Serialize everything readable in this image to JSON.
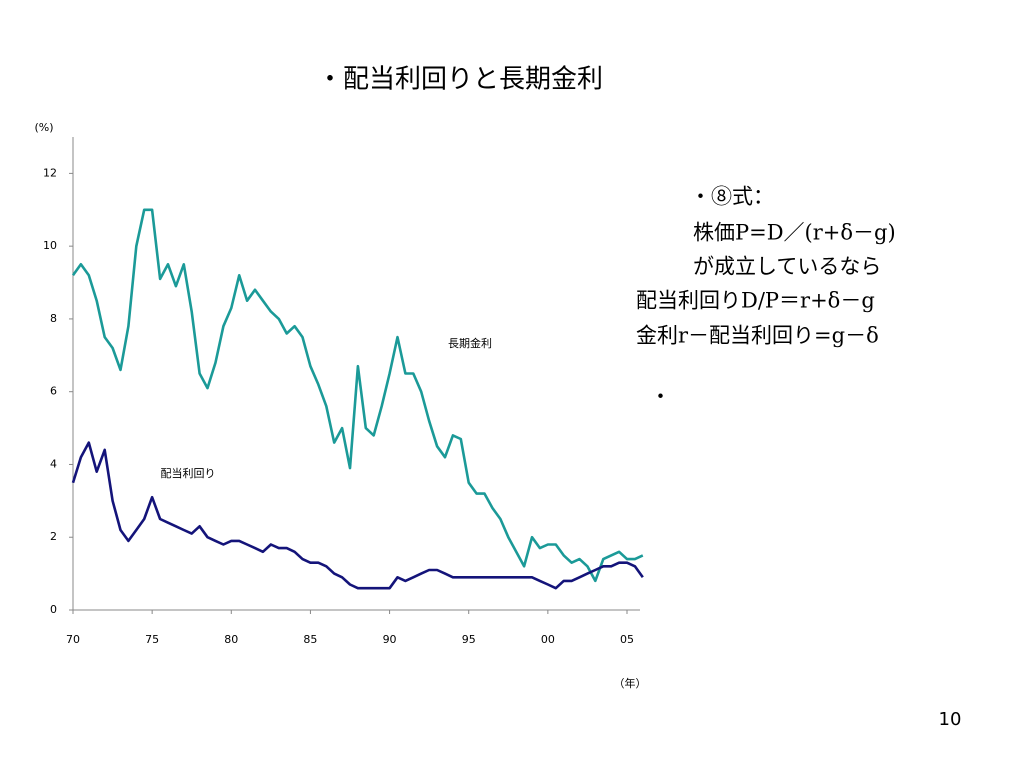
{
  "chart_data": {
    "type": "line",
    "title": "・配当利回りと長期金利",
    "y_label": "(%)",
    "x_label": "（年）",
    "x": [
      1970,
      1970.5,
      1971,
      1971.5,
      1972,
      1972.5,
      1973,
      1973.5,
      1974,
      1974.5,
      1975,
      1975.5,
      1976,
      1976.5,
      1977,
      1977.5,
      1978,
      1978.5,
      1979,
      1979.5,
      1980,
      1980.5,
      1981,
      1981.5,
      1982,
      1982.5,
      1983,
      1983.5,
      1984,
      1984.5,
      1985,
      1985.5,
      1986,
      1986.5,
      1987,
      1987.5,
      1988,
      1988.5,
      1989,
      1989.5,
      1990,
      1990.5,
      1991,
      1991.5,
      1992,
      1992.5,
      1993,
      1993.5,
      1994,
      1994.5,
      1995,
      1995.5,
      1996,
      1996.5,
      1997,
      1997.5,
      1998,
      1998.5,
      1999,
      1999.5,
      2000,
      2000.5,
      2001,
      2001.5,
      2002,
      2002.5,
      2003,
      2003.5,
      2004,
      2004.5,
      2005,
      2005.5,
      2006
    ],
    "series": [
      {
        "name": "長期金利",
        "color": "#1b9a98",
        "values": [
          9.2,
          9.5,
          9.2,
          8.5,
          7.5,
          7.2,
          6.6,
          7.8,
          10.0,
          11.0,
          11.0,
          9.1,
          9.5,
          8.9,
          9.5,
          8.2,
          6.5,
          6.1,
          6.8,
          7.8,
          8.3,
          9.2,
          8.5,
          8.8,
          8.5,
          8.2,
          8.0,
          7.6,
          7.8,
          7.5,
          6.7,
          6.2,
          5.6,
          4.6,
          5.0,
          3.9,
          6.7,
          5.0,
          4.8,
          5.6,
          6.5,
          7.5,
          6.5,
          6.5,
          6.0,
          5.2,
          4.5,
          4.2,
          4.8,
          4.7,
          3.5,
          3.2,
          3.2,
          2.8,
          2.5,
          2.0,
          1.6,
          1.2,
          2.0,
          1.7,
          1.8,
          1.8,
          1.5,
          1.3,
          1.4,
          1.2,
          0.8,
          1.4,
          1.5,
          1.6,
          1.4,
          1.4,
          1.5
        ]
      },
      {
        "name": "配当利回り",
        "color": "#14147a",
        "values": [
          3.5,
          4.2,
          4.6,
          3.8,
          4.4,
          3.0,
          2.2,
          1.9,
          2.2,
          2.5,
          3.1,
          2.5,
          2.4,
          2.3,
          2.2,
          2.1,
          2.3,
          2.0,
          1.9,
          1.8,
          1.9,
          1.9,
          1.8,
          1.7,
          1.6,
          1.8,
          1.7,
          1.7,
          1.6,
          1.4,
          1.3,
          1.3,
          1.2,
          1.0,
          0.9,
          0.7,
          0.6,
          0.6,
          0.6,
          0.6,
          0.6,
          0.9,
          0.8,
          0.9,
          1.0,
          1.1,
          1.1,
          1.0,
          0.9,
          0.9,
          0.9,
          0.9,
          0.9,
          0.9,
          0.9,
          0.9,
          0.9,
          0.9,
          0.9,
          0.8,
          0.7,
          0.6,
          0.8,
          0.8,
          0.9,
          1.0,
          1.1,
          1.2,
          1.2,
          1.3,
          1.3,
          1.2,
          0.9
        ]
      }
    ],
    "xlim": [
      1970,
      2006.2
    ],
    "xticks": [
      {
        "value": 1970,
        "label": "70"
      },
      {
        "value": 1975,
        "label": "75"
      },
      {
        "value": 1980,
        "label": "80"
      },
      {
        "value": 1985,
        "label": "85"
      },
      {
        "value": 1990,
        "label": "90"
      },
      {
        "value": 1995,
        "label": "95"
      },
      {
        "value": 2000,
        "label": "00"
      },
      {
        "value": 2005,
        "label": "05"
      }
    ],
    "ylim": [
      0,
      13
    ],
    "yticks": [
      0,
      2,
      4,
      6,
      8,
      10,
      12
    ],
    "grid": false,
    "side_text": [
      "・⑧式：",
      "株価P=D／(r+δ－g)",
      "が成立しているなら",
      "配当利回りD/P＝r+δ－g",
      "金利r－配当利回り=g－δ",
      "・"
    ],
    "page_number": "10"
  }
}
